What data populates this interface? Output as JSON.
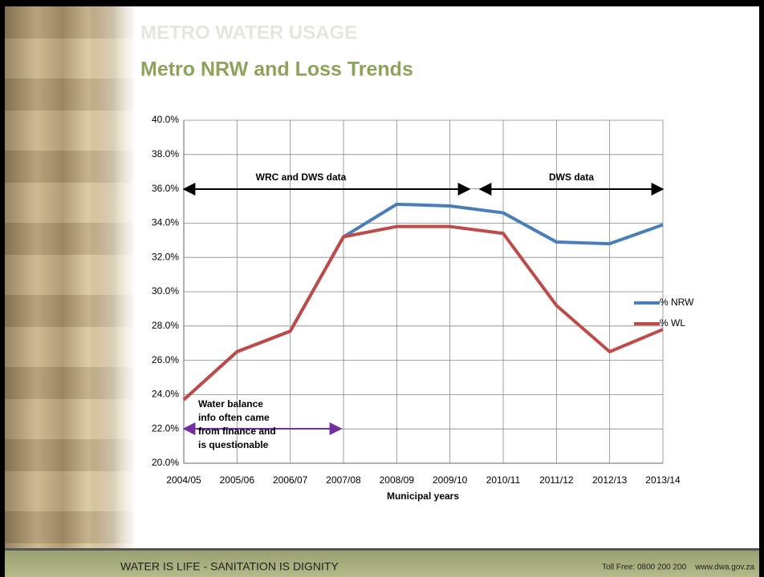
{
  "slide": {
    "section": "METRO WATER USAGE",
    "footer_left": "WATER IS LIFE - SANITATION IS DIGNITY",
    "footer_right": "Toll Free: 0800 200 200    www.dwa.gov.za"
  },
  "chart_data": {
    "type": "line",
    "title": "Metro NRW and Loss Trends",
    "x_label": "Municipal years",
    "categories": [
      "2004/05",
      "2005/06",
      "2006/07",
      "2007/08",
      "2008/09",
      "2009/10",
      "2010/11",
      "2011/12",
      "2012/13",
      "2013/14"
    ],
    "series": [
      {
        "name": "% NRW",
        "color": "#4a7ebb",
        "values": [
          23.7,
          26.5,
          27.7,
          33.2,
          35.1,
          35.0,
          34.6,
          32.9,
          32.8,
          33.9
        ]
      },
      {
        "name": "% WL",
        "color": "#be4b48",
        "values": [
          23.7,
          26.5,
          27.7,
          33.2,
          33.8,
          33.8,
          33.4,
          29.2,
          26.5,
          27.8
        ]
      }
    ],
    "ylim": [
      20,
      40
    ],
    "yticks": [
      {
        "value": 20,
        "label": "20.0%"
      },
      {
        "value": 22,
        "label": "22.0%"
      },
      {
        "value": 24,
        "label": "24.0%"
      },
      {
        "value": 26,
        "label": "26.0%"
      },
      {
        "value": 28,
        "label": "28.0%"
      },
      {
        "value": 30,
        "label": "30.0%"
      },
      {
        "value": 32,
        "label": "32.0%"
      },
      {
        "value": 34,
        "label": "34.0%"
      },
      {
        "value": 36,
        "label": "36.0%"
      },
      {
        "value": 38,
        "label": "38.0%"
      },
      {
        "value": 40,
        "label": "40.0%"
      }
    ],
    "grid": true,
    "legend": "right",
    "annotations": [
      "WRC and DWS data",
      "DWS data",
      [
        "Water balance",
        "info often came",
        "from finance and",
        "is questionable"
      ]
    ]
  }
}
